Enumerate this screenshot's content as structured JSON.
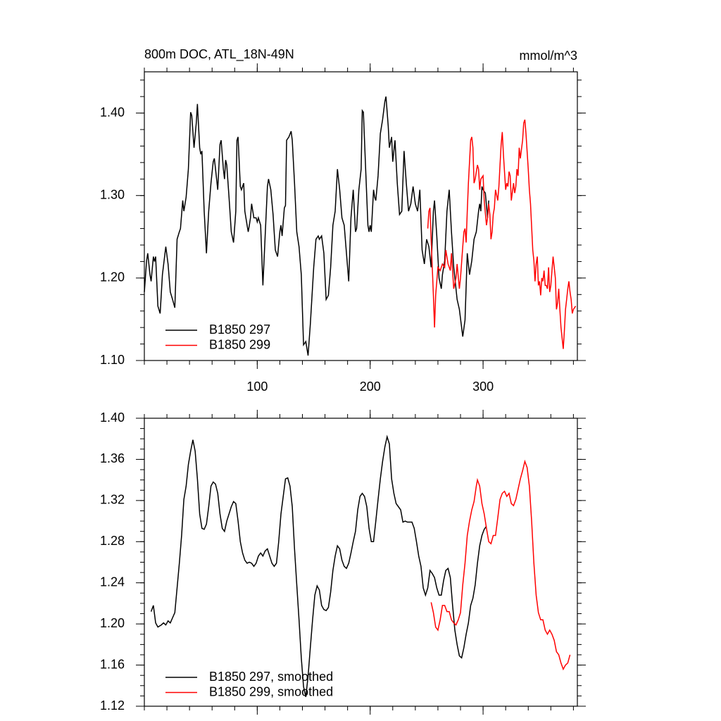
{
  "chart_data": [
    {
      "type": "line",
      "title": "800m DOC, ATL_18N-49N",
      "units": "mmol/m^3",
      "xlim": [
        0,
        383.5
      ],
      "xticks": [
        100,
        200,
        300
      ],
      "xtick_labels": true,
      "ylim": [
        1.1,
        1.45
      ],
      "yticks": [
        {
          "value": 1.1,
          "label": "1.10"
        },
        {
          "value": 1.2,
          "label": "1.20"
        },
        {
          "value": 1.3,
          "label": "1.30"
        },
        {
          "value": 1.4,
          "label": "1.40"
        }
      ],
      "series": [
        {
          "name": "B1850 297",
          "color": "#000000",
          "x": [
            0,
            2,
            3,
            5,
            6,
            8,
            9,
            10,
            11,
            12,
            14,
            16,
            19,
            21,
            23,
            25,
            27,
            29,
            31,
            32,
            34,
            35,
            37,
            39,
            41,
            42,
            44,
            46,
            47,
            49,
            50,
            51,
            53,
            55,
            57,
            59,
            61,
            62,
            64,
            65,
            67,
            68,
            70,
            71,
            72,
            73,
            75,
            77,
            79,
            81,
            82,
            83,
            85,
            86,
            88,
            89,
            91,
            92,
            93,
            94,
            95,
            97,
            99,
            100,
            101,
            103,
            105,
            107,
            109,
            110,
            112,
            114,
            116,
            118,
            120,
            121,
            122,
            124,
            125,
            126,
            128,
            130,
            131,
            133,
            135,
            137,
            139,
            141,
            143,
            145,
            147,
            150,
            152,
            154,
            155,
            157,
            159,
            161,
            163,
            165,
            167,
            169,
            171,
            173,
            175,
            177,
            179,
            181,
            183,
            185,
            187,
            188,
            190,
            192,
            193,
            194,
            196,
            198,
            199,
            200,
            201,
            203,
            204,
            205,
            207,
            209,
            211,
            213,
            214,
            216,
            217,
            219,
            220,
            222,
            224,
            226,
            228,
            230,
            232,
            234,
            236,
            238,
            240,
            242,
            244,
            246,
            248,
            250,
            252,
            254,
            256,
            257,
            259,
            261,
            263,
            264,
            266,
            268,
            270,
            272,
            274,
            276,
            277,
            279,
            281,
            282,
            284,
            286,
            288,
            290,
            292,
            294,
            296,
            297,
            298,
            299,
            300,
            302,
            304,
            305
          ],
          "values": [
            1.183,
            1.221,
            1.23,
            1.204,
            1.196,
            1.226,
            1.22,
            1.226,
            1.196,
            1.166,
            1.157,
            1.204,
            1.238,
            1.217,
            1.183,
            1.174,
            1.164,
            1.247,
            1.256,
            1.26,
            1.294,
            1.281,
            1.298,
            1.332,
            1.401,
            1.397,
            1.358,
            1.388,
            1.411,
            1.358,
            1.35,
            1.354,
            1.281,
            1.23,
            1.281,
            1.315,
            1.341,
            1.345,
            1.32,
            1.307,
            1.362,
            1.367,
            1.332,
            1.32,
            1.343,
            1.337,
            1.298,
            1.256,
            1.243,
            1.281,
            1.367,
            1.371,
            1.311,
            1.307,
            1.315,
            1.281,
            1.264,
            1.256,
            1.264,
            1.273,
            1.29,
            1.273,
            1.273,
            1.268,
            1.273,
            1.264,
            1.191,
            1.251,
            1.311,
            1.32,
            1.307,
            1.277,
            1.234,
            1.226,
            1.256,
            1.264,
            1.251,
            1.285,
            1.288,
            1.367,
            1.371,
            1.378,
            1.367,
            1.315,
            1.256,
            1.238,
            1.204,
            1.119,
            1.123,
            1.106,
            1.144,
            1.213,
            1.247,
            1.251,
            1.247,
            1.251,
            1.23,
            1.174,
            1.179,
            1.213,
            1.264,
            1.281,
            1.332,
            1.307,
            1.273,
            1.264,
            1.23,
            1.196,
            1.273,
            1.307,
            1.256,
            1.26,
            1.307,
            1.332,
            1.403,
            1.401,
            1.332,
            1.264,
            1.256,
            1.264,
            1.256,
            1.307,
            1.298,
            1.294,
            1.324,
            1.375,
            1.392,
            1.414,
            1.42,
            1.384,
            1.358,
            1.371,
            1.341,
            1.367,
            1.315,
            1.277,
            1.281,
            1.354,
            1.315,
            1.281,
            1.29,
            1.311,
            1.29,
            1.281,
            1.307,
            1.234,
            1.217,
            1.247,
            1.238,
            1.213,
            1.281,
            1.294,
            1.251,
            1.2,
            1.187,
            1.204,
            1.221,
            1.281,
            1.307,
            1.256,
            1.213,
            1.187,
            1.174,
            1.162,
            1.14,
            1.129,
            1.149,
            1.23,
            1.204,
            1.221,
            1.247,
            1.256,
            1.281,
            1.29,
            1.281,
            1.311,
            1.307,
            1.303,
            1.273,
            1.294
          ]
        },
        {
          "name": "B1850 299",
          "color": "#ff0000",
          "x": [
            251,
            252,
            253,
            254,
            256,
            257,
            258,
            260,
            262,
            264,
            266,
            267,
            269,
            271,
            272,
            274,
            276,
            277,
            279,
            280,
            282,
            283,
            284,
            285,
            286,
            287,
            289,
            290,
            291,
            292,
            293,
            295,
            296,
            297,
            298,
            300,
            301,
            303,
            304,
            305,
            306,
            307,
            308,
            309,
            310,
            311,
            313,
            314,
            315,
            316,
            317,
            318,
            320,
            321,
            322,
            323,
            324,
            325,
            327,
            328,
            329,
            330,
            331,
            332,
            333,
            335,
            336,
            337,
            338,
            340,
            341,
            342,
            344,
            345,
            346,
            347,
            348,
            349,
            350,
            351,
            352,
            353,
            354,
            355,
            356,
            357,
            358,
            359,
            360,
            361,
            362,
            363,
            364,
            365,
            366,
            367,
            368,
            369,
            370,
            371,
            372,
            373,
            374,
            375,
            376,
            377,
            378,
            379,
            380,
            382
          ],
          "values": [
            1.26,
            1.281,
            1.285,
            1.247,
            1.179,
            1.14,
            1.179,
            1.213,
            1.209,
            1.217,
            1.213,
            1.234,
            1.217,
            1.209,
            1.23,
            1.187,
            1.2,
            1.217,
            1.187,
            1.2,
            1.238,
            1.256,
            1.26,
            1.243,
            1.281,
            1.315,
            1.367,
            1.371,
            1.358,
            1.315,
            1.32,
            1.337,
            1.332,
            1.307,
            1.32,
            1.324,
            1.294,
            1.264,
            1.273,
            1.29,
            1.277,
            1.247,
            1.256,
            1.277,
            1.285,
            1.307,
            1.294,
            1.311,
            1.337,
            1.362,
            1.377,
            1.35,
            1.307,
            1.315,
            1.311,
            1.329,
            1.324,
            1.294,
            1.315,
            1.303,
            1.311,
            1.332,
            1.324,
            1.358,
            1.345,
            1.367,
            1.388,
            1.392,
            1.375,
            1.332,
            1.307,
            1.29,
            1.234,
            1.221,
            1.196,
            1.217,
            1.226,
            1.191,
            1.196,
            1.179,
            1.2,
            1.196,
            1.209,
            1.191,
            1.191,
            1.187,
            1.213,
            1.183,
            1.191,
            1.209,
            1.226,
            1.213,
            1.2,
            1.162,
            1.17,
            1.187,
            1.162,
            1.14,
            1.127,
            1.114,
            1.136,
            1.162,
            1.174,
            1.187,
            1.196,
            1.183,
            1.174,
            1.157,
            1.162,
            1.166
          ]
        }
      ]
    },
    {
      "type": "line",
      "xlim": [
        0,
        383.5
      ],
      "xticks": [
        100,
        200,
        300
      ],
      "xtick_labels": false,
      "ylim": [
        1.12,
        1.4
      ],
      "yticks": [
        {
          "value": 1.12,
          "label": "1.12"
        },
        {
          "value": 1.16,
          "label": "1.16"
        },
        {
          "value": 1.2,
          "label": "1.20"
        },
        {
          "value": 1.24,
          "label": "1.24"
        },
        {
          "value": 1.28,
          "label": "1.28"
        },
        {
          "value": 1.32,
          "label": "1.32"
        },
        {
          "value": 1.36,
          "label": "1.36"
        },
        {
          "value": 1.4,
          "label": "1.40"
        }
      ],
      "series": [
        {
          "name": "B1850 297, smoothed",
          "color": "#000000",
          "x": [
            6,
            8,
            10,
            12,
            15,
            17,
            19,
            21,
            23,
            25,
            27,
            29,
            31,
            33,
            35,
            37,
            39,
            41,
            43,
            45,
            47,
            49,
            51,
            53,
            55,
            57,
            59,
            61,
            63,
            65,
            67,
            69,
            71,
            73,
            75,
            77,
            79,
            81,
            83,
            85,
            87,
            89,
            91,
            93,
            95,
            97,
            99,
            101,
            103,
            105,
            107,
            109,
            111,
            113,
            115,
            117,
            119,
            121,
            123,
            125,
            127,
            129,
            131,
            133,
            135,
            137,
            139,
            141,
            143,
            145,
            147,
            149,
            151,
            153,
            155,
            157,
            159,
            161,
            163,
            165,
            167,
            169,
            171,
            173,
            175,
            177,
            179,
            181,
            183,
            185,
            187,
            189,
            191,
            193,
            195,
            197,
            199,
            201,
            203,
            205,
            207,
            209,
            211,
            213,
            215,
            217,
            219,
            221,
            223,
            225,
            227,
            229,
            231,
            233,
            235,
            237,
            239,
            241,
            243,
            245,
            247,
            249,
            251,
            253,
            255,
            257,
            259,
            261,
            263,
            265,
            267,
            269,
            271,
            273,
            275,
            277,
            279,
            281,
            283,
            285,
            287,
            289,
            291,
            293,
            295,
            297,
            299,
            301,
            303
          ],
          "values": [
            1.212,
            1.218,
            1.201,
            1.197,
            1.199,
            1.201,
            1.199,
            1.203,
            1.201,
            1.206,
            1.211,
            1.235,
            1.259,
            1.286,
            1.321,
            1.334,
            1.355,
            1.368,
            1.379,
            1.368,
            1.341,
            1.307,
            1.293,
            1.292,
            1.297,
            1.314,
            1.334,
            1.338,
            1.336,
            1.327,
            1.307,
            1.293,
            1.29,
            1.3,
            1.307,
            1.314,
            1.319,
            1.317,
            1.3,
            1.28,
            1.269,
            1.262,
            1.259,
            1.26,
            1.259,
            1.256,
            1.259,
            1.266,
            1.269,
            1.266,
            1.271,
            1.273,
            1.266,
            1.259,
            1.256,
            1.259,
            1.28,
            1.307,
            1.324,
            1.341,
            1.342,
            1.334,
            1.314,
            1.273,
            1.238,
            1.204,
            1.167,
            1.139,
            1.129,
            1.149,
            1.177,
            1.204,
            1.228,
            1.237,
            1.233,
            1.218,
            1.214,
            1.213,
            1.216,
            1.231,
            1.252,
            1.266,
            1.276,
            1.273,
            1.262,
            1.256,
            1.254,
            1.259,
            1.269,
            1.28,
            1.29,
            1.311,
            1.324,
            1.327,
            1.324,
            1.314,
            1.293,
            1.28,
            1.28,
            1.3,
            1.321,
            1.341,
            1.358,
            1.372,
            1.382,
            1.375,
            1.341,
            1.327,
            1.317,
            1.314,
            1.311,
            1.299,
            1.3,
            1.299,
            1.299,
            1.299,
            1.293,
            1.28,
            1.266,
            1.256,
            1.235,
            1.228,
            1.235,
            1.252,
            1.249,
            1.245,
            1.235,
            1.228,
            1.228,
            1.242,
            1.252,
            1.254,
            1.245,
            1.218,
            1.194,
            1.18,
            1.169,
            1.167,
            1.177,
            1.19,
            1.201,
            1.218,
            1.225,
            1.238,
            1.259,
            1.276,
            1.286,
            1.292,
            1.295
          ]
        },
        {
          "name": "B1850 299, smoothed",
          "color": "#ff0000",
          "x": [
            254,
            256,
            258,
            260,
            262,
            264,
            266,
            268,
            270,
            272,
            274,
            276,
            278,
            280,
            282,
            284,
            286,
            288,
            290,
            292,
            294,
            295,
            297,
            299,
            301,
            303,
            305,
            307,
            309,
            311,
            313,
            315,
            317,
            319,
            321,
            323,
            325,
            327,
            329,
            331,
            333,
            335,
            337,
            339,
            341,
            343,
            345,
            347,
            349,
            351,
            353,
            355,
            357,
            359,
            361,
            363,
            365,
            367,
            369,
            371,
            373,
            375,
            377
          ],
          "values": [
            1.221,
            1.211,
            1.197,
            1.194,
            1.204,
            1.218,
            1.218,
            1.212,
            1.212,
            1.204,
            1.201,
            1.199,
            1.204,
            1.211,
            1.238,
            1.259,
            1.286,
            1.3,
            1.311,
            1.319,
            1.334,
            1.34,
            1.334,
            1.317,
            1.307,
            1.293,
            1.28,
            1.278,
            1.286,
            1.286,
            1.303,
            1.321,
            1.327,
            1.329,
            1.324,
            1.327,
            1.317,
            1.315,
            1.321,
            1.331,
            1.341,
            1.349,
            1.358,
            1.352,
            1.334,
            1.3,
            1.259,
            1.228,
            1.211,
            1.204,
            1.204,
            1.194,
            1.19,
            1.194,
            1.19,
            1.184,
            1.173,
            1.17,
            1.162,
            1.156,
            1.16,
            1.162,
            1.17
          ]
        }
      ]
    }
  ]
}
